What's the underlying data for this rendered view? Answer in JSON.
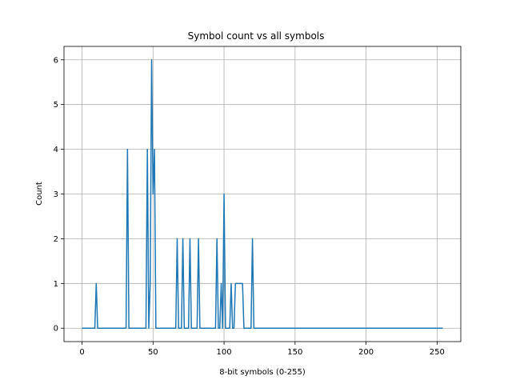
{
  "chart_data": {
    "type": "line",
    "title": "Symbol count vs all symbols",
    "xlabel": "8-bit symbols (0-255)",
    "ylabel": "Count",
    "xlim": [
      -12.7,
      266.7
    ],
    "ylim": [
      -0.3,
      6.3
    ],
    "xticks": [
      0,
      50,
      100,
      150,
      200,
      250
    ],
    "yticks": [
      0,
      1,
      2,
      3,
      4,
      5,
      6
    ],
    "grid": true,
    "legend": "none",
    "colors": {
      "line": "#1f77b4",
      "grid": "#b0b0b0",
      "axes": "#000000"
    },
    "x_range": [
      0,
      254
    ],
    "points": [
      [
        10,
        1
      ],
      [
        32,
        4
      ],
      [
        46,
        4
      ],
      [
        48,
        1
      ],
      [
        49,
        6
      ],
      [
        50,
        3
      ],
      [
        51,
        4
      ],
      [
        67,
        2
      ],
      [
        71,
        2
      ],
      [
        76,
        2
      ],
      [
        82,
        2
      ],
      [
        95,
        2
      ],
      [
        98,
        1
      ],
      [
        100,
        3
      ],
      [
        105,
        1
      ],
      [
        108,
        1
      ],
      [
        109,
        1
      ],
      [
        110,
        1
      ],
      [
        111,
        1
      ],
      [
        112,
        1
      ],
      [
        113,
        1
      ],
      [
        120,
        2
      ]
    ]
  }
}
